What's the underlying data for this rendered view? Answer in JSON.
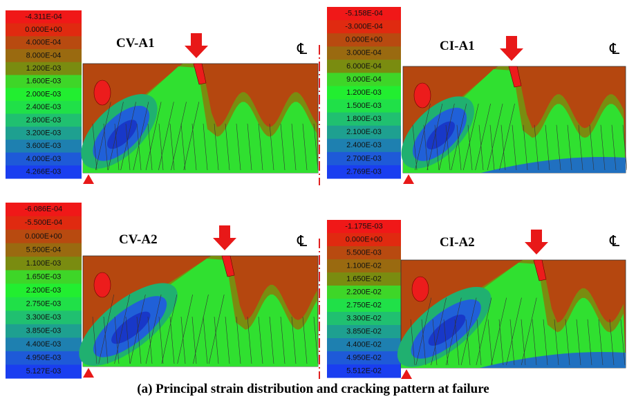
{
  "panels": [
    {
      "title": "CV-A1",
      "centerline": "℄",
      "legend": [
        "-4.311E-04",
        "0.000E+00",
        "4.000E-04",
        "8.000E-04",
        "1.200E-03",
        "1.600E-03",
        "2.000E-03",
        "2.400E-03",
        "2.800E-03",
        "3.200E-03",
        "3.600E-03",
        "4.000E-03",
        "4.266E-03"
      ]
    },
    {
      "title": "CI-A1",
      "centerline": "℄",
      "legend": [
        "-5.158E-04",
        "-3.000E-04",
        "0.000E+00",
        "3.000E-04",
        "6.000E-04",
        "9.000E-04",
        "1.200E-03",
        "1.500E-03",
        "1.800E-03",
        "2.100E-03",
        "2.400E-03",
        "2.700E-03",
        "2.769E-03"
      ]
    },
    {
      "title": "CV-A2",
      "centerline": "℄",
      "legend": [
        "-6.086E-04",
        "-5.500E-04",
        "0.000E+00",
        "5.500E-04",
        "1.100E-03",
        "1.650E-03",
        "2.200E-03",
        "2.750E-03",
        "3.300E-03",
        "3.850E-03",
        "4.400E-03",
        "4.950E-03",
        "5.127E-03"
      ]
    },
    {
      "title": "CI-A2",
      "centerline": "℄",
      "legend": [
        "-1.175E-03",
        "0.000E+00",
        "5.500E-03",
        "1.100E-02",
        "1.650E-02",
        "2.200E-02",
        "2.750E-02",
        "3.300E-02",
        "3.850E-02",
        "4.400E-02",
        "4.950E-02",
        "5.512E-02"
      ]
    }
  ],
  "caption": "(a) Principal strain distribution and cracking pattern at failure"
}
